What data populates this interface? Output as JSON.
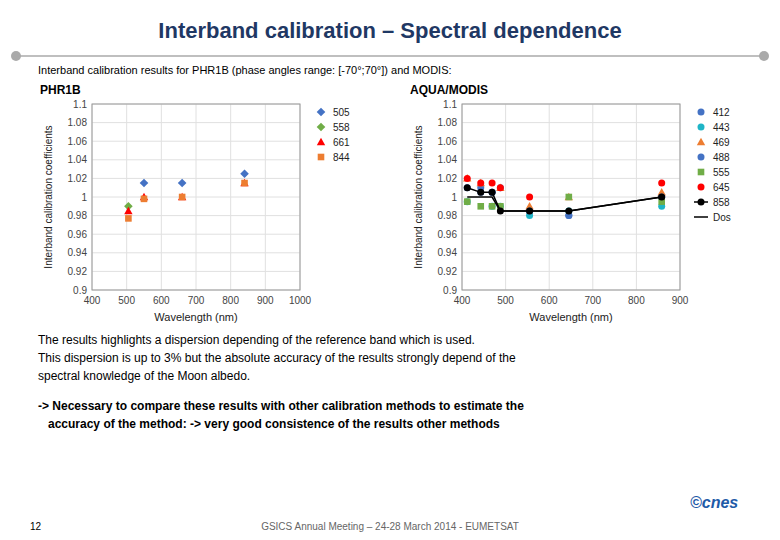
{
  "title": "Interband calibration – Spectral dependence",
  "subtitle": "Interband calibration results for PHR1B (phase angles range: [-70°;70°]) and MODIS:",
  "annotations": [
    "The results highlights a dispersion depending of the reference band which is used.",
    "This dispersion is up to 3% but the absolute accuracy of the results strongly depend of the",
    "spectral knowledge of the Moon albedo.",
    "-> Necessary to compare these results with other calibration methods to estimate the",
    "   accuracy of the method: -> very good consistence of the results other methods",
    "12",
    "GSICS Annual Meeting – 24-28 March 2014 - EUMETSAT",
    "©cnes"
  ],
  "chart_data": [
    {
      "type": "scatter",
      "title": "PHR1B",
      "x_label": "Wavelength (nm)",
      "y_label": "Interband calibration coefficients",
      "xlim": [
        400,
        1000
      ],
      "xticks": [
        400,
        500,
        600,
        700,
        800,
        900,
        1000
      ],
      "ylim": [
        0.9,
        1.1
      ],
      "yticks": [
        0.9,
        0.92,
        0.94,
        0.96,
        0.98,
        1,
        1.02,
        1.04,
        1.06,
        1.08,
        1.1
      ],
      "grid": true,
      "legend": "right",
      "series": [
        {
          "name": "505",
          "color": "#4472C4",
          "marker": "diamond",
          "x": [
            550,
            660,
            840
          ],
          "values": [
            1.015,
            1.015,
            1.025
          ]
        },
        {
          "name": "558",
          "color": "#70AD47",
          "marker": "diamond",
          "x": [
            505
          ],
          "values": [
            0.99
          ]
        },
        {
          "name": "661",
          "color": "#FF0000",
          "marker": "triangle",
          "x": [
            505,
            550,
            660,
            840
          ],
          "values": [
            0.985,
            1.0,
            1.0,
            1.015
          ]
        },
        {
          "name": "844",
          "color": "#ED7D31",
          "marker": "square",
          "x": [
            505,
            550,
            660,
            840
          ],
          "values": [
            0.977,
            0.998,
            1.0,
            1.015
          ]
        }
      ]
    },
    {
      "type": "scatter",
      "title": "AQUA/MODIS",
      "x_label": "Wavelength (nm)",
      "y_label": "Interband calibration coefficients",
      "xlim": [
        400,
        900
      ],
      "xticks": [
        400,
        500,
        600,
        700,
        800,
        900
      ],
      "ylim": [
        0.9,
        1.1
      ],
      "yticks": [
        0.9,
        0.92,
        0.94,
        0.96,
        0.98,
        1,
        1.02,
        1.04,
        1.06,
        1.08,
        1.1
      ],
      "grid": true,
      "legend": "right",
      "series": [
        {
          "name": "412",
          "color": "#4472C4",
          "marker": "circle",
          "x": [
            443,
            469,
            488,
            555,
            645,
            858
          ],
          "values": [
            1.01,
            1.005,
            1.01,
            0.985,
            0.98,
            1.0
          ]
        },
        {
          "name": "443",
          "color": "#1FB5C7",
          "marker": "circle",
          "x": [
            412,
            469,
            488,
            555,
            645,
            858
          ],
          "values": [
            0.995,
            0.99,
            0.99,
            0.98,
            0.985,
            0.99
          ]
        },
        {
          "name": "469",
          "color": "#ED7D31",
          "marker": "triangle",
          "x": [
            412,
            443,
            488,
            555,
            645,
            858
          ],
          "values": [
            1.02,
            1.015,
            1.01,
            0.99,
            1.0,
            1.005
          ]
        },
        {
          "name": "488",
          "color": "#4472C4",
          "marker": "circle",
          "x": [
            412,
            443,
            469,
            555,
            645,
            858
          ],
          "values": [
            1.01,
            1.005,
            1.005,
            0.985,
            0.98,
            1.0
          ]
        },
        {
          "name": "555",
          "color": "#70AD47",
          "marker": "square",
          "x": [
            412,
            443,
            469,
            488,
            645,
            858
          ],
          "values": [
            0.995,
            0.99,
            0.99,
            0.99,
            1.0,
            0.995
          ]
        },
        {
          "name": "645",
          "color": "#FF0000",
          "marker": "circle",
          "x": [
            412,
            443,
            469,
            488,
            555,
            858
          ],
          "values": [
            1.02,
            1.015,
            1.015,
            1.01,
            1.0,
            1.015
          ]
        },
        {
          "name": "858",
          "color": "#000000",
          "marker": "circle",
          "type": "line",
          "x": [
            412,
            443,
            469,
            488,
            555,
            645,
            858
          ],
          "values": [
            1.01,
            1.005,
            1.005,
            0.985,
            0.985,
            0.985,
            1.0
          ]
        },
        {
          "name": "Dos",
          "color": "#000000",
          "type": "line",
          "x": [
            412,
            443,
            469,
            488,
            555,
            645,
            858
          ],
          "values": [
            1.0,
            1.0,
            1.0,
            0.985,
            0.985,
            0.985,
            1.0
          ]
        }
      ]
    }
  ]
}
